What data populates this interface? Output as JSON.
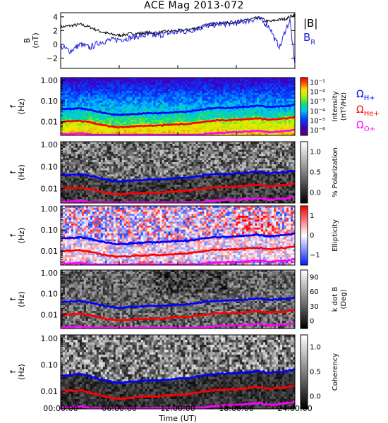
{
  "title": "ACE Mag 2013-072",
  "colors": {
    "total_field": "#000000",
    "radial_field": "#2222dd",
    "omega_h": "#0000ff",
    "omega_he": "#ff0000",
    "omega_o": "#ff00ff"
  },
  "x_axis": {
    "label": "Time (UT)",
    "ticks": [
      "00:00:00",
      "06:00:00",
      "12:00:00",
      "18:00:00",
      "24:00:00"
    ]
  },
  "legend": {
    "total_field": "|B|",
    "radial_field": "B_R",
    "omega_h": "Ω_H+",
    "omega_he": "Ω_He+",
    "omega_o": "Ω_O+"
  },
  "chart_data": [
    {
      "type": "line",
      "name": "magnetic field",
      "ylabel": [
        "B",
        "(nT)"
      ],
      "ylim": [
        -3.5,
        4.6
      ],
      "y_ticks": [
        "4",
        "2",
        "0",
        "−2"
      ],
      "x": [
        0,
        1,
        2,
        3,
        4,
        5,
        6,
        7,
        8,
        9,
        10,
        11,
        12,
        13,
        14,
        15,
        16,
        17,
        18,
        19,
        20,
        20.5,
        21,
        21.5,
        22,
        22.5,
        23,
        23.5,
        24
      ],
      "series": [
        {
          "key": "total_field",
          "values": [
            2.5,
            2.7,
            2.9,
            2.5,
            1.9,
            1.5,
            1.3,
            1.5,
            1.6,
            1.7,
            1.7,
            1.9,
            2.0,
            2.1,
            2.4,
            2.8,
            3.0,
            3.1,
            3.2,
            3.5,
            3.8,
            3.8,
            3.4,
            3.3,
            3.5,
            3.6,
            3.7,
            4.0,
            4.4
          ]
        },
        {
          "key": "radial_field",
          "values": [
            -0.3,
            -1.0,
            0.0,
            -0.5,
            0.3,
            0.6,
            0.7,
            0.9,
            1.2,
            1.3,
            1.3,
            1.6,
            1.8,
            1.9,
            2.3,
            2.7,
            2.9,
            3.0,
            3.1,
            3.4,
            3.7,
            3.6,
            3.0,
            2.3,
            0.5,
            -0.4,
            2.0,
            3.5,
            -3.2
          ]
        }
      ]
    },
    {
      "type": "heatmap",
      "name": "intensity spectrogram",
      "ylabel": [
        "f",
        "(Hz)"
      ],
      "y_scale": "log",
      "y_ticks": [
        "1.00",
        "0.10",
        "0.01"
      ],
      "colorbar": {
        "label": [
          "Intensity",
          "(nT²/Hz)"
        ],
        "ticks": [
          "10⁻¹",
          "10⁻²",
          "10⁻³",
          "10⁻⁴",
          "10⁻⁵",
          "10⁻⁶"
        ]
      }
    },
    {
      "type": "heatmap",
      "name": "polarization spectrogram",
      "ylabel": [
        "f",
        "(Hz)"
      ],
      "y_scale": "log",
      "y_ticks": [
        "1.00",
        "0.10",
        "0.01"
      ],
      "colorbar": {
        "label": [
          "% Polarization"
        ],
        "ticks": [
          "1.0",
          "0.5",
          "0.0"
        ]
      }
    },
    {
      "type": "heatmap",
      "name": "ellipticity spectrogram",
      "ylabel": [
        "f",
        "(Hz)"
      ],
      "y_scale": "log",
      "y_ticks": [
        "1.00",
        "0.10",
        "0.01"
      ],
      "colorbar": {
        "label": [
          "Ellipticity"
        ],
        "ticks": [
          "1",
          "0",
          "−1"
        ]
      }
    },
    {
      "type": "heatmap",
      "name": "k dot B spectrogram",
      "ylabel": [
        "f",
        "(Hz)"
      ],
      "y_scale": "log",
      "y_ticks": [
        "1.00",
        "0.10",
        "0.01"
      ],
      "colorbar": {
        "label": [
          "k dot B",
          "(Deg)"
        ],
        "ticks": [
          "90",
          "60",
          "30",
          "0"
        ]
      }
    },
    {
      "type": "heatmap",
      "name": "coherency spectrogram",
      "ylabel": [
        "f",
        "(Hz)"
      ],
      "y_scale": "log",
      "y_ticks": [
        "1.00",
        "0.10",
        "0.01"
      ],
      "colorbar": {
        "label": [
          "Coherency"
        ],
        "ticks": [
          "1.0",
          "0.5",
          "0.0"
        ]
      }
    }
  ],
  "gyrofrequencies": {
    "x": [
      0,
      1,
      2,
      3,
      4,
      5,
      6,
      7,
      8,
      9,
      10,
      11,
      12,
      13,
      14,
      15,
      16,
      17,
      18,
      19,
      20,
      20.5,
      21,
      21.5,
      22,
      22.5,
      23,
      23.5,
      24
    ],
    "omega_h": [
      0.04,
      0.042,
      0.045,
      0.038,
      0.029,
      0.024,
      0.021,
      0.023,
      0.024,
      0.026,
      0.026,
      0.028,
      0.03,
      0.031,
      0.036,
      0.042,
      0.046,
      0.047,
      0.049,
      0.053,
      0.058,
      0.058,
      0.052,
      0.05,
      0.053,
      0.055,
      0.056,
      0.061,
      0.067
    ],
    "omega_he": [
      0.01,
      0.0105,
      0.011,
      0.0095,
      0.0073,
      0.006,
      0.0053,
      0.0058,
      0.0061,
      0.0065,
      0.0065,
      0.007,
      0.0075,
      0.0078,
      0.009,
      0.0105,
      0.0115,
      0.0118,
      0.0122,
      0.0133,
      0.0145,
      0.0145,
      0.013,
      0.0125,
      0.0133,
      0.0138,
      0.014,
      0.0153,
      0.0168
    ],
    "omega_o": [
      0.0025,
      0.0026,
      0.0028,
      0.0024,
      0.0018,
      0.0015,
      0.0013,
      0.0015,
      0.0015,
      0.0016,
      0.0016,
      0.0018,
      0.0019,
      0.002,
      0.0023,
      0.0026,
      0.0029,
      0.003,
      0.0031,
      0.0033,
      0.0036,
      0.0036,
      0.0033,
      0.0031,
      0.0033,
      0.0034,
      0.0035,
      0.0038,
      0.0042
    ]
  }
}
